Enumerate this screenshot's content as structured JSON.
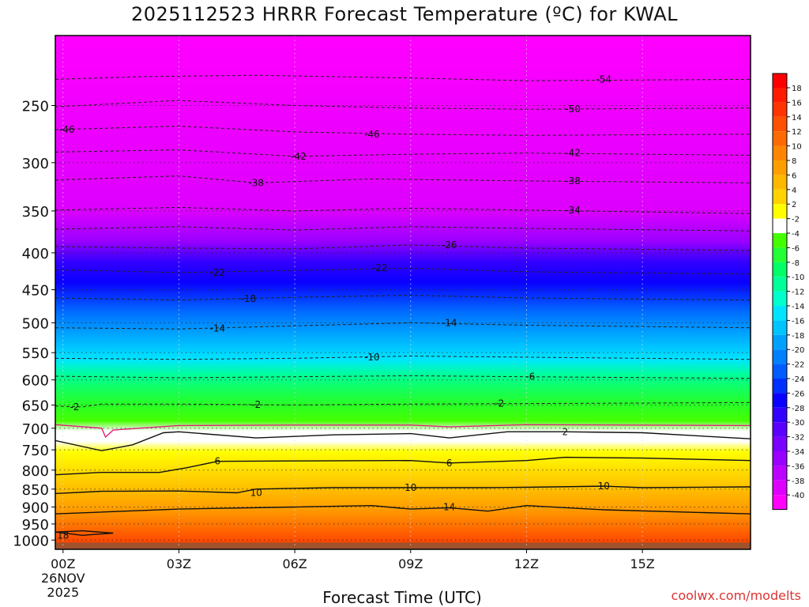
{
  "chart_data": {
    "type": "heatmap",
    "title": "2025112523 HRRR Forecast Temperature (ºC) for KWAL",
    "xlabel": "Forecast Time (UTC)",
    "ylabel": "",
    "credit": "coolwx.com/modelts",
    "x_range": [
      -0.2,
      17.8
    ],
    "y_range_hpa": [
      1030,
      200
    ],
    "x_ticks": [
      {
        "x": 0,
        "label": "00Z",
        "sub1": "26NOV",
        "sub2": "2025"
      },
      {
        "x": 3,
        "label": "03Z"
      },
      {
        "x": 6,
        "label": "06Z"
      },
      {
        "x": 9,
        "label": "09Z"
      },
      {
        "x": 12,
        "label": "12Z"
      },
      {
        "x": 15,
        "label": "15Z"
      }
    ],
    "y_ticks": [
      {
        "p": 250,
        "label": "250"
      },
      {
        "p": 300,
        "label": "300"
      },
      {
        "p": 350,
        "label": "350"
      },
      {
        "p": 400,
        "label": "400"
      },
      {
        "p": 450,
        "label": "450"
      },
      {
        "p": 500,
        "label": "500"
      },
      {
        "p": 550,
        "label": "550"
      },
      {
        "p": 600,
        "label": "600"
      },
      {
        "p": 650,
        "label": "650"
      },
      {
        "p": 700,
        "label": "700"
      },
      {
        "p": 750,
        "label": "750"
      },
      {
        "p": 800,
        "label": "800"
      },
      {
        "p": 850,
        "label": "850"
      },
      {
        "p": 900,
        "label": "900"
      },
      {
        "p": 950,
        "label": "950"
      },
      {
        "p": 1000,
        "label": "1000"
      }
    ],
    "levels_hpa": [
      200,
      250,
      300,
      350,
      400,
      450,
      500,
      550,
      600,
      650,
      700,
      750,
      800,
      850,
      900,
      950,
      1000,
      1030
    ],
    "temperature_profile_C": [
      -58,
      -52,
      -43,
      -35,
      -26,
      -20,
      -14,
      -9,
      -6,
      -2,
      2,
      5,
      7,
      10,
      13,
      16,
      18,
      19
    ],
    "colorbar": {
      "labels": [
        "18",
        "16",
        "14",
        "12",
        "10",
        "8",
        "6",
        "4",
        "2",
        "-2",
        "-4",
        "-6",
        "-8",
        "-10",
        "-12",
        "-14",
        "-16",
        "-18",
        "-20",
        "-22",
        "-24",
        "-26",
        "-28",
        "-30",
        "-32",
        "-34",
        "-36",
        "-38",
        "-40"
      ],
      "colors": [
        "#ff1a00",
        "#ff3300",
        "#ff5000",
        "#ff6a00",
        "#ff8400",
        "#ff9e00",
        "#ffb800",
        "#ffd200",
        "#ffff00",
        "#ffffff",
        "#44ff00",
        "#22ff33",
        "#00ff66",
        "#00ff99",
        "#00ffcc",
        "#00e5ff",
        "#00c4ff",
        "#00a0ff",
        "#0080ff",
        "#005cff",
        "#0030ff",
        "#0a00ff",
        "#3300ff",
        "#5a00ff",
        "#7a00ff",
        "#9a00ff",
        "#bb00ff",
        "#dd00ff",
        "#ff00ff"
      ]
    },
    "contours": [
      {
        "label": "-54",
        "style": "dashed",
        "color": "#222222",
        "points": [
          [
            -0.2,
            230
          ],
          [
            2,
            228
          ],
          [
            5,
            227
          ],
          [
            9,
            229
          ],
          [
            12,
            231
          ],
          [
            17.8,
            230
          ]
        ],
        "labels": [
          [
            14.0,
            230
          ]
        ]
      },
      {
        "label": "-50",
        "style": "dashed",
        "color": "#222222",
        "points": [
          [
            -0.2,
            251
          ],
          [
            3,
            246
          ],
          [
            6,
            250
          ],
          [
            9,
            252
          ],
          [
            12,
            253
          ],
          [
            17.8,
            252
          ]
        ],
        "labels": [
          [
            13.2,
            253
          ]
        ]
      },
      {
        "label": "-46",
        "style": "dashed",
        "color": "#222222",
        "points": [
          [
            -0.2,
            270
          ],
          [
            3,
            267
          ],
          [
            6,
            272
          ],
          [
            9,
            274
          ],
          [
            12,
            275
          ],
          [
            17.8,
            274
          ]
        ],
        "labels": [
          [
            0.1,
            270
          ],
          [
            8.0,
            274
          ]
        ]
      },
      {
        "label": "-42",
        "style": "dashed",
        "color": "#222222",
        "points": [
          [
            -0.2,
            290
          ],
          [
            3,
            288
          ],
          [
            6,
            294
          ],
          [
            9,
            292
          ],
          [
            12,
            291
          ],
          [
            17.8,
            293
          ]
        ],
        "labels": [
          [
            6.1,
            294
          ],
          [
            13.2,
            291
          ]
        ]
      },
      {
        "label": "-38",
        "style": "dashed",
        "color": "#222222",
        "points": [
          [
            -0.2,
            317
          ],
          [
            3,
            313
          ],
          [
            5,
            320
          ],
          [
            8,
            316
          ],
          [
            12,
            318
          ],
          [
            17.8,
            320
          ]
        ],
        "labels": [
          [
            5.0,
            320
          ],
          [
            13.2,
            318
          ]
        ]
      },
      {
        "label": "-34",
        "style": "dashed",
        "color": "#222222",
        "points": [
          [
            -0.2,
            349
          ],
          [
            3,
            346
          ],
          [
            6,
            350
          ],
          [
            9,
            347
          ],
          [
            12,
            349
          ],
          [
            17.8,
            353
          ]
        ],
        "labels": [
          [
            13.2,
            349
          ]
        ]
      },
      {
        "label": "-30",
        "style": "dashed",
        "color": "#222222",
        "points": [
          [
            -0.2,
            371
          ],
          [
            3,
            368
          ],
          [
            6,
            372
          ],
          [
            9,
            368
          ],
          [
            12,
            370
          ],
          [
            17.8,
            373
          ]
        ],
        "labels": []
      },
      {
        "label": "-26",
        "style": "dashed",
        "color": "#222222",
        "points": [
          [
            -0.2,
            392
          ],
          [
            3,
            394
          ],
          [
            6,
            395
          ],
          [
            9,
            390
          ],
          [
            12,
            394
          ],
          [
            17.8,
            397
          ]
        ],
        "labels": [
          [
            10.0,
            390
          ]
        ]
      },
      {
        "label": "-22",
        "style": "dashed",
        "color": "#222222",
        "points": [
          [
            -0.2,
            422
          ],
          [
            3,
            426
          ],
          [
            6,
            423
          ],
          [
            9,
            420
          ],
          [
            12,
            425
          ],
          [
            17.8,
            428
          ]
        ],
        "labels": [
          [
            4.0,
            426
          ],
          [
            8.2,
            420
          ]
        ]
      },
      {
        "label": "-18",
        "style": "dashed",
        "color": "#222222",
        "points": [
          [
            -0.2,
            462
          ],
          [
            3,
            465
          ],
          [
            6,
            461
          ],
          [
            9,
            458
          ],
          [
            12,
            462
          ],
          [
            17.8,
            465
          ]
        ],
        "labels": [
          [
            4.8,
            463
          ]
        ]
      },
      {
        "label": "-14",
        "style": "dashed",
        "color": "#222222",
        "points": [
          [
            -0.2,
            508
          ],
          [
            3,
            510
          ],
          [
            6,
            505
          ],
          [
            9,
            500
          ],
          [
            12,
            504
          ],
          [
            17.8,
            508
          ]
        ],
        "labels": [
          [
            4.0,
            509
          ],
          [
            10.0,
            500
          ]
        ]
      },
      {
        "label": "-10",
        "style": "dashed",
        "color": "#222222",
        "points": [
          [
            -0.2,
            560
          ],
          [
            3,
            562
          ],
          [
            6,
            560
          ],
          [
            9,
            556
          ],
          [
            12,
            558
          ],
          [
            17.8,
            562
          ]
        ],
        "labels": [
          [
            8.0,
            558
          ]
        ]
      },
      {
        "label": "-6",
        "style": "dashed",
        "color": "#222222",
        "points": [
          [
            -0.2,
            593
          ],
          [
            3,
            596
          ],
          [
            6,
            594
          ],
          [
            9,
            592
          ],
          [
            12,
            594
          ],
          [
            17.8,
            597
          ]
        ],
        "labels": [
          [
            12.1,
            594
          ]
        ]
      },
      {
        "label": "-2",
        "style": "dashed",
        "color": "#222222",
        "points": [
          [
            -0.2,
            652
          ],
          [
            0.5,
            654
          ],
          [
            1,
            648
          ],
          [
            3,
            648
          ],
          [
            6,
            650
          ],
          [
            9,
            648
          ],
          [
            12,
            647
          ],
          [
            17.8,
            645
          ]
        ],
        "labels": [
          [
            0.3,
            654
          ],
          [
            5.0,
            649
          ],
          [
            11.3,
            647
          ]
        ]
      },
      {
        "label": "2",
        "style": "solid",
        "color": "#e0207a",
        "points": [
          [
            -0.2,
            692
          ],
          [
            1,
            700
          ],
          [
            1.1,
            720
          ],
          [
            1.3,
            704
          ],
          [
            3,
            694
          ],
          [
            6,
            693
          ],
          [
            9,
            693
          ],
          [
            10,
            697
          ],
          [
            12,
            692
          ],
          [
            17.8,
            694
          ]
        ],
        "labels": []
      },
      {
        "label": "2",
        "style": "solid",
        "color": "#111111",
        "points": [
          [
            -0.2,
            728
          ],
          [
            1,
            752
          ],
          [
            1.8,
            738
          ],
          [
            2.6,
            710
          ],
          [
            3,
            708
          ],
          [
            5,
            722
          ],
          [
            7,
            715
          ],
          [
            9,
            712
          ],
          [
            10,
            722
          ],
          [
            11.5,
            708
          ],
          [
            13,
            708
          ],
          [
            15,
            710
          ],
          [
            17.8,
            724
          ]
        ],
        "labels": [
          [
            13.0,
            708
          ]
        ]
      },
      {
        "label": "6",
        "style": "solid",
        "color": "#111111",
        "points": [
          [
            -0.2,
            812
          ],
          [
            1,
            806
          ],
          [
            2.5,
            806
          ],
          [
            3.2,
            794
          ],
          [
            4,
            778
          ],
          [
            6,
            777
          ],
          [
            9,
            776
          ],
          [
            10,
            782
          ],
          [
            12,
            776
          ],
          [
            13,
            768
          ],
          [
            15,
            770
          ],
          [
            17.8,
            776
          ]
        ],
        "labels": [
          [
            4.0,
            778
          ],
          [
            10.0,
            782
          ]
        ]
      },
      {
        "label": "10",
        "style": "solid",
        "color": "#111111",
        "points": [
          [
            -0.2,
            862
          ],
          [
            1,
            856
          ],
          [
            3,
            855
          ],
          [
            4.5,
            860
          ],
          [
            5,
            850
          ],
          [
            7,
            846
          ],
          [
            9,
            846
          ],
          [
            11,
            846
          ],
          [
            12,
            845
          ],
          [
            14,
            842
          ],
          [
            15,
            846
          ],
          [
            17.8,
            844
          ]
        ],
        "labels": [
          [
            5.0,
            860
          ],
          [
            9.0,
            846
          ],
          [
            14.0,
            842
          ]
        ]
      },
      {
        "label": "14",
        "style": "solid",
        "color": "#111111",
        "points": [
          [
            -0.2,
            920
          ],
          [
            3,
            906
          ],
          [
            6,
            900
          ],
          [
            8,
            896
          ],
          [
            9,
            906
          ],
          [
            10,
            902
          ],
          [
            11,
            912
          ],
          [
            12,
            896
          ],
          [
            14,
            908
          ],
          [
            17.8,
            920
          ]
        ],
        "labels": [
          [
            10.0,
            900
          ]
        ]
      },
      {
        "label": "18",
        "style": "solid",
        "color": "#111111",
        "points": [
          [
            -0.2,
            975
          ],
          [
            0.5,
            985
          ],
          [
            1.3,
            978
          ],
          [
            0.5,
            971
          ],
          [
            -0.2,
            975
          ]
        ],
        "labels": [
          [
            0.0,
            985
          ]
        ]
      }
    ]
  }
}
